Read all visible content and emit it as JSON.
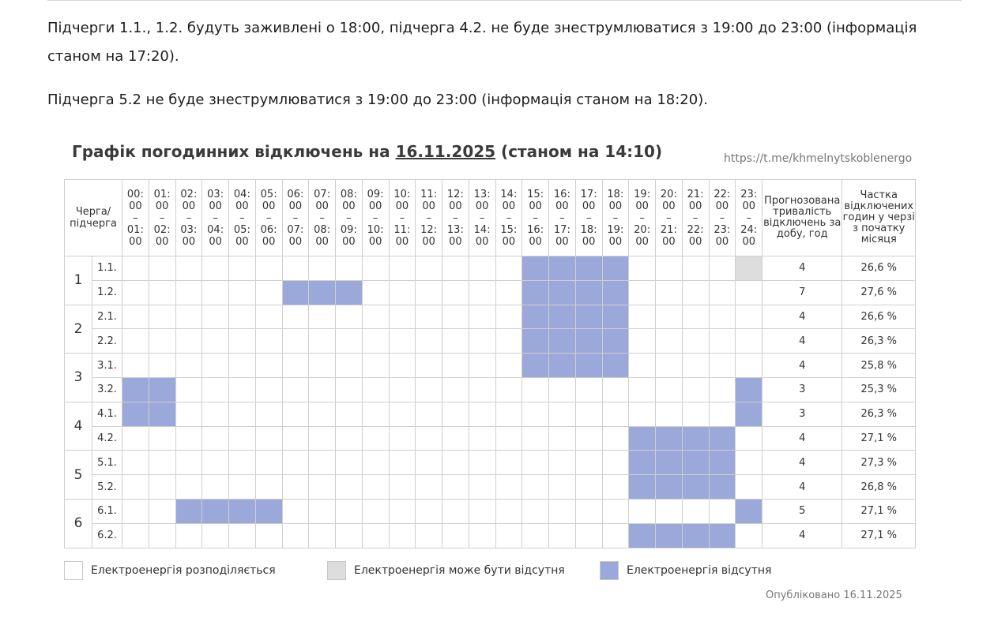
{
  "paragraphs": [
    "Підчерги 1.1., 1.2. будуть заживлені о 18:00, підчерга 4.2. не буде знеструмлюватися з 19:00 до 23:00 (інформація станом на 17:20).",
    "Підчерга 5.2 не буде знеструмлюватися з 19:00 до 23:00 (інформація станом на 18:20)."
  ],
  "title": {
    "prefix": "Графік погодинних відключень на ",
    "date": "16.11.2025",
    "suffix": " (станом на 14:10)"
  },
  "link": "https://t.me/khmelnytskoblenergo",
  "table": {
    "queue_header": "Черга/ підчерга",
    "duration_header": "Прогнозована тривалість відключень за добу, год",
    "share_header": "Частка відключених годин у черзі з початку місяця",
    "hours": [
      {
        "from": "00:\n00",
        "to": "01:\n00"
      },
      {
        "from": "01:\n00",
        "to": "02:\n00"
      },
      {
        "from": "02:\n00",
        "to": "03:\n00"
      },
      {
        "from": "03:\n00",
        "to": "04:\n00"
      },
      {
        "from": "04:\n00",
        "to": "05:\n00"
      },
      {
        "from": "05:\n00",
        "to": "06:\n00"
      },
      {
        "from": "06:\n00",
        "to": "07:\n00"
      },
      {
        "from": "07:\n00",
        "to": "08:\n00"
      },
      {
        "from": "08:\n00",
        "to": "09:\n00"
      },
      {
        "from": "09:\n00",
        "to": "10:\n00"
      },
      {
        "from": "10:\n00",
        "to": "11:\n00"
      },
      {
        "from": "11:\n00",
        "to": "12:\n00"
      },
      {
        "from": "12:\n00",
        "to": "13:\n00"
      },
      {
        "from": "13:\n00",
        "to": "14:\n00"
      },
      {
        "from": "14:\n00",
        "to": "15:\n00"
      },
      {
        "from": "15:\n00",
        "to": "16:\n00"
      },
      {
        "from": "16:\n00",
        "to": "17:\n00"
      },
      {
        "from": "17:\n00",
        "to": "18:\n00"
      },
      {
        "from": "18:\n00",
        "to": "19:\n00"
      },
      {
        "from": "19:\n00",
        "to": "20:\n00"
      },
      {
        "from": "20:\n00",
        "to": "21:\n00"
      },
      {
        "from": "21:\n00",
        "to": "22:\n00"
      },
      {
        "from": "22:\n00",
        "to": "23:\n00"
      },
      {
        "from": "23:\n00",
        "to": "24:\n00"
      }
    ],
    "groups": [
      {
        "label": "1",
        "subs": [
          {
            "label": "1.1.",
            "off": [
              15,
              16,
              17,
              18
            ],
            "maybe": [
              23
            ],
            "duration": "4",
            "share": "26,6 %"
          },
          {
            "label": "1.2.",
            "off": [
              6,
              7,
              8,
              15,
              16,
              17,
              18
            ],
            "maybe": [],
            "duration": "7",
            "share": "27,6 %"
          }
        ]
      },
      {
        "label": "2",
        "subs": [
          {
            "label": "2.1.",
            "off": [
              15,
              16,
              17,
              18
            ],
            "maybe": [],
            "duration": "4",
            "share": "26,6 %"
          },
          {
            "label": "2.2.",
            "off": [
              15,
              16,
              17,
              18
            ],
            "maybe": [],
            "duration": "4",
            "share": "26,3 %"
          }
        ]
      },
      {
        "label": "3",
        "subs": [
          {
            "label": "3.1.",
            "off": [
              15,
              16,
              17,
              18
            ],
            "maybe": [],
            "duration": "4",
            "share": "25,8 %"
          },
          {
            "label": "3.2.",
            "off": [
              0,
              1,
              23
            ],
            "maybe": [],
            "duration": "3",
            "share": "25,3 %"
          }
        ]
      },
      {
        "label": "4",
        "subs": [
          {
            "label": "4.1.",
            "off": [
              0,
              1,
              23
            ],
            "maybe": [],
            "duration": "3",
            "share": "26,3 %"
          },
          {
            "label": "4.2.",
            "off": [
              19,
              20,
              21,
              22
            ],
            "maybe": [],
            "duration": "4",
            "share": "27,1 %"
          }
        ]
      },
      {
        "label": "5",
        "subs": [
          {
            "label": "5.1.",
            "off": [
              19,
              20,
              21,
              22
            ],
            "maybe": [],
            "duration": "4",
            "share": "27,3 %"
          },
          {
            "label": "5.2.",
            "off": [
              19,
              20,
              21,
              22
            ],
            "maybe": [],
            "duration": "4",
            "share": "26,8 %"
          }
        ]
      },
      {
        "label": "6",
        "subs": [
          {
            "label": "6.1.",
            "off": [
              2,
              3,
              4,
              5,
              23
            ],
            "maybe": [],
            "duration": "5",
            "share": "27,1 %"
          },
          {
            "label": "6.2.",
            "off": [
              19,
              20,
              21,
              22
            ],
            "maybe": [],
            "duration": "4",
            "share": "27,1 %"
          }
        ]
      }
    ]
  },
  "colors": {
    "off": "#9aa8da",
    "maybe": "#dddddd",
    "on": "#ffffff"
  },
  "legend": [
    {
      "key": "on",
      "label": "Електроенергія розподіляється"
    },
    {
      "key": "maybe",
      "label": "Електроенергія може бути відсутня"
    },
    {
      "key": "off",
      "label": "Електроенергія відсутня"
    }
  ],
  "published": "Опубліковано 16.11.2025"
}
